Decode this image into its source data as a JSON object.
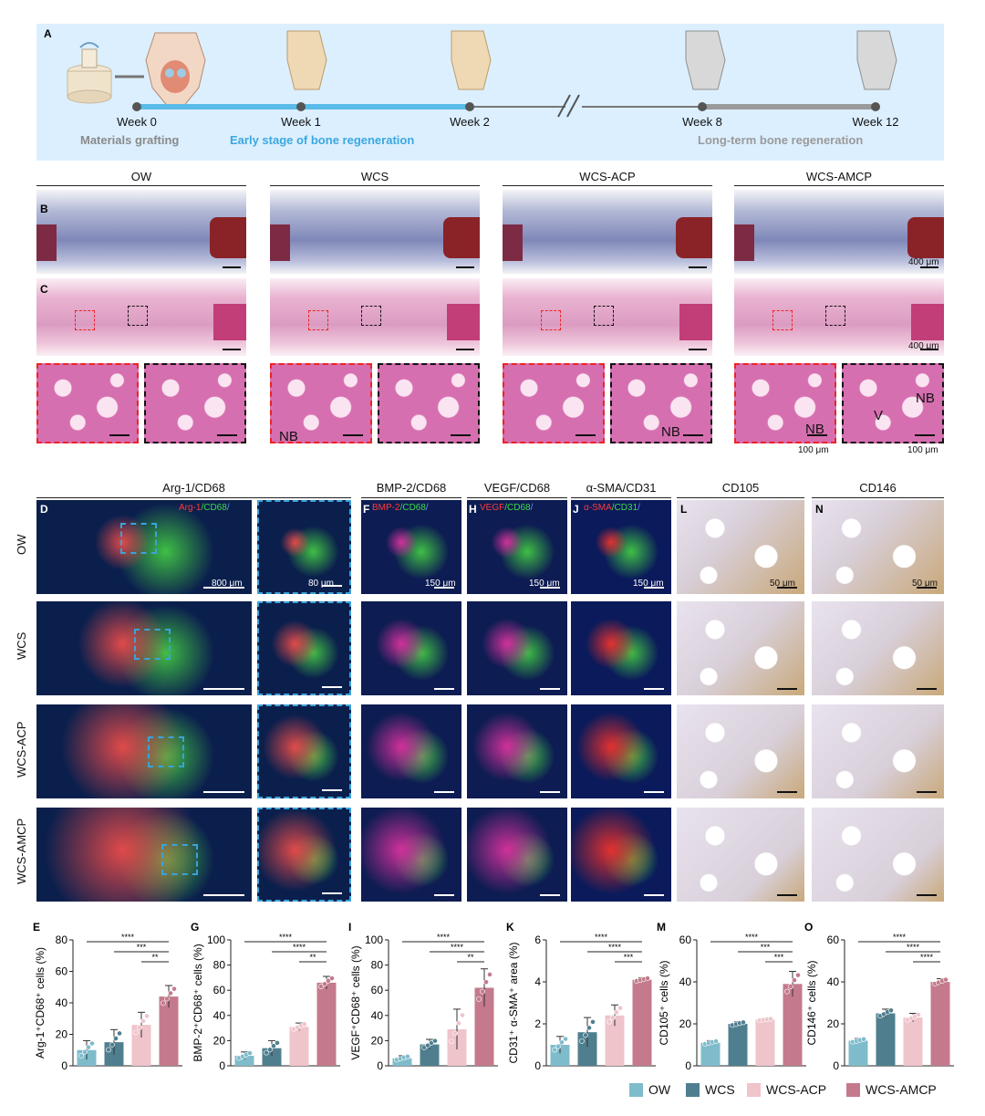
{
  "panelA": {
    "label": "A",
    "weeks": [
      "Week 0",
      "Week 1",
      "Week 2",
      "Week 8",
      "Week 12"
    ],
    "stages": [
      "Materials grafting",
      "Early stage of bone regeneration",
      "Long-term bone regeneration"
    ]
  },
  "groups": [
    "OW",
    "WCS",
    "WCS-ACP",
    "WCS-AMCP"
  ],
  "panelB": {
    "label": "B",
    "scale": "400 μm"
  },
  "panelC": {
    "label": "C",
    "scale": "400 μm",
    "zoom_scale": "100 μm",
    "nb": "NB",
    "v": "V"
  },
  "if_section": {
    "titles": [
      "Arg-1/CD68",
      "BMP-2/CD68",
      "VEGF/CD68",
      "α-SMA/CD31",
      "CD105",
      "CD146"
    ],
    "letters": [
      "D",
      "F",
      "H",
      "J",
      "L",
      "N"
    ],
    "stains": [
      [
        "Arg-1",
        "/CD68",
        "/"
      ],
      [
        "BMP-2",
        "/CD68",
        "/"
      ],
      [
        "VEGF",
        "/CD68",
        "/"
      ],
      [
        "α-SMA",
        "/CD31",
        "/"
      ]
    ],
    "scales": [
      "800 μm",
      "80 μm",
      "150 μm",
      "150 μm",
      "150 μm",
      "50 μm",
      "50 μm"
    ]
  },
  "legend": [
    "OW",
    "WCS",
    "WCS-ACP",
    "WCS-AMCP"
  ],
  "colors": {
    "OW": "#7fbccb",
    "WCS": "#4f7f8f",
    "WCS-ACP": "#efc4cb",
    "WCS-AMCP": "#c47a8c",
    "timeline_blue": "#5bbbe8",
    "timeline_grey": "#9a9a9a"
  },
  "chart_data": [
    {
      "type": "bar",
      "letter": "E",
      "ylabel": "Arg-1⁺CD68⁺ cells (%)",
      "ylim": [
        0,
        80
      ],
      "ticks": [
        0,
        20,
        40,
        60,
        80
      ],
      "categories": [
        "OW",
        "WCS",
        "WCS-ACP",
        "WCS-AMCP"
      ],
      "values": [
        10,
        15,
        26,
        44
      ],
      "errors": [
        6,
        8,
        8,
        7
      ],
      "sig": [
        "****",
        "***",
        "**"
      ]
    },
    {
      "type": "bar",
      "letter": "G",
      "ylabel": "BMP-2⁺CD68⁺ cells (%)",
      "ylim": [
        0,
        100
      ],
      "ticks": [
        0,
        20,
        40,
        60,
        80,
        100
      ],
      "categories": [
        "OW",
        "WCS",
        "WCS-ACP",
        "WCS-AMCP"
      ],
      "values": [
        8,
        14,
        31,
        66
      ],
      "errors": [
        3,
        6,
        3,
        5
      ],
      "sig": [
        "****",
        "****",
        "**"
      ]
    },
    {
      "type": "bar",
      "letter": "I",
      "ylabel": "VEGF⁺CD68⁺ cells (%)",
      "ylim": [
        0,
        100
      ],
      "ticks": [
        0,
        20,
        40,
        60,
        80,
        100
      ],
      "categories": [
        "OW",
        "WCS",
        "WCS-ACP",
        "WCS-AMCP"
      ],
      "values": [
        6,
        17,
        29,
        62
      ],
      "errors": [
        2,
        4,
        16,
        15
      ],
      "sig": [
        "****",
        "****",
        "**"
      ]
    },
    {
      "type": "bar",
      "letter": "K",
      "ylabel": "CD31⁺ α-SMA⁺ area (%)",
      "ylim": [
        0,
        6
      ],
      "ticks": [
        0,
        2,
        4,
        6
      ],
      "categories": [
        "OW",
        "WCS",
        "WCS-ACP",
        "WCS-AMCP"
      ],
      "values": [
        1.0,
        1.6,
        2.4,
        4.1
      ],
      "errors": [
        0.4,
        0.7,
        0.5,
        0.1
      ],
      "sig": [
        "****",
        "****",
        "***"
      ]
    },
    {
      "type": "bar",
      "letter": "M",
      "ylabel": "CD105⁺ cells (%)",
      "ylim": [
        0,
        60
      ],
      "ticks": [
        0,
        20,
        40,
        60
      ],
      "categories": [
        "OW",
        "WCS",
        "WCS-ACP",
        "WCS-AMCP"
      ],
      "values": [
        11,
        20,
        22,
        39
      ],
      "errors": [
        1,
        1,
        0.5,
        6
      ],
      "sig": [
        "****",
        "***",
        "***"
      ]
    },
    {
      "type": "bar",
      "letter": "O",
      "ylabel": "CD146⁺ cells (%)",
      "ylim": [
        0,
        60
      ],
      "ticks": [
        0,
        20,
        40,
        60
      ],
      "categories": [
        "OW",
        "WCS",
        "WCS-ACP",
        "WCS-AMCP"
      ],
      "values": [
        12,
        25,
        23,
        40
      ],
      "errors": [
        1,
        2,
        2,
        1.5
      ],
      "sig": [
        "****",
        "****",
        "****"
      ]
    }
  ]
}
